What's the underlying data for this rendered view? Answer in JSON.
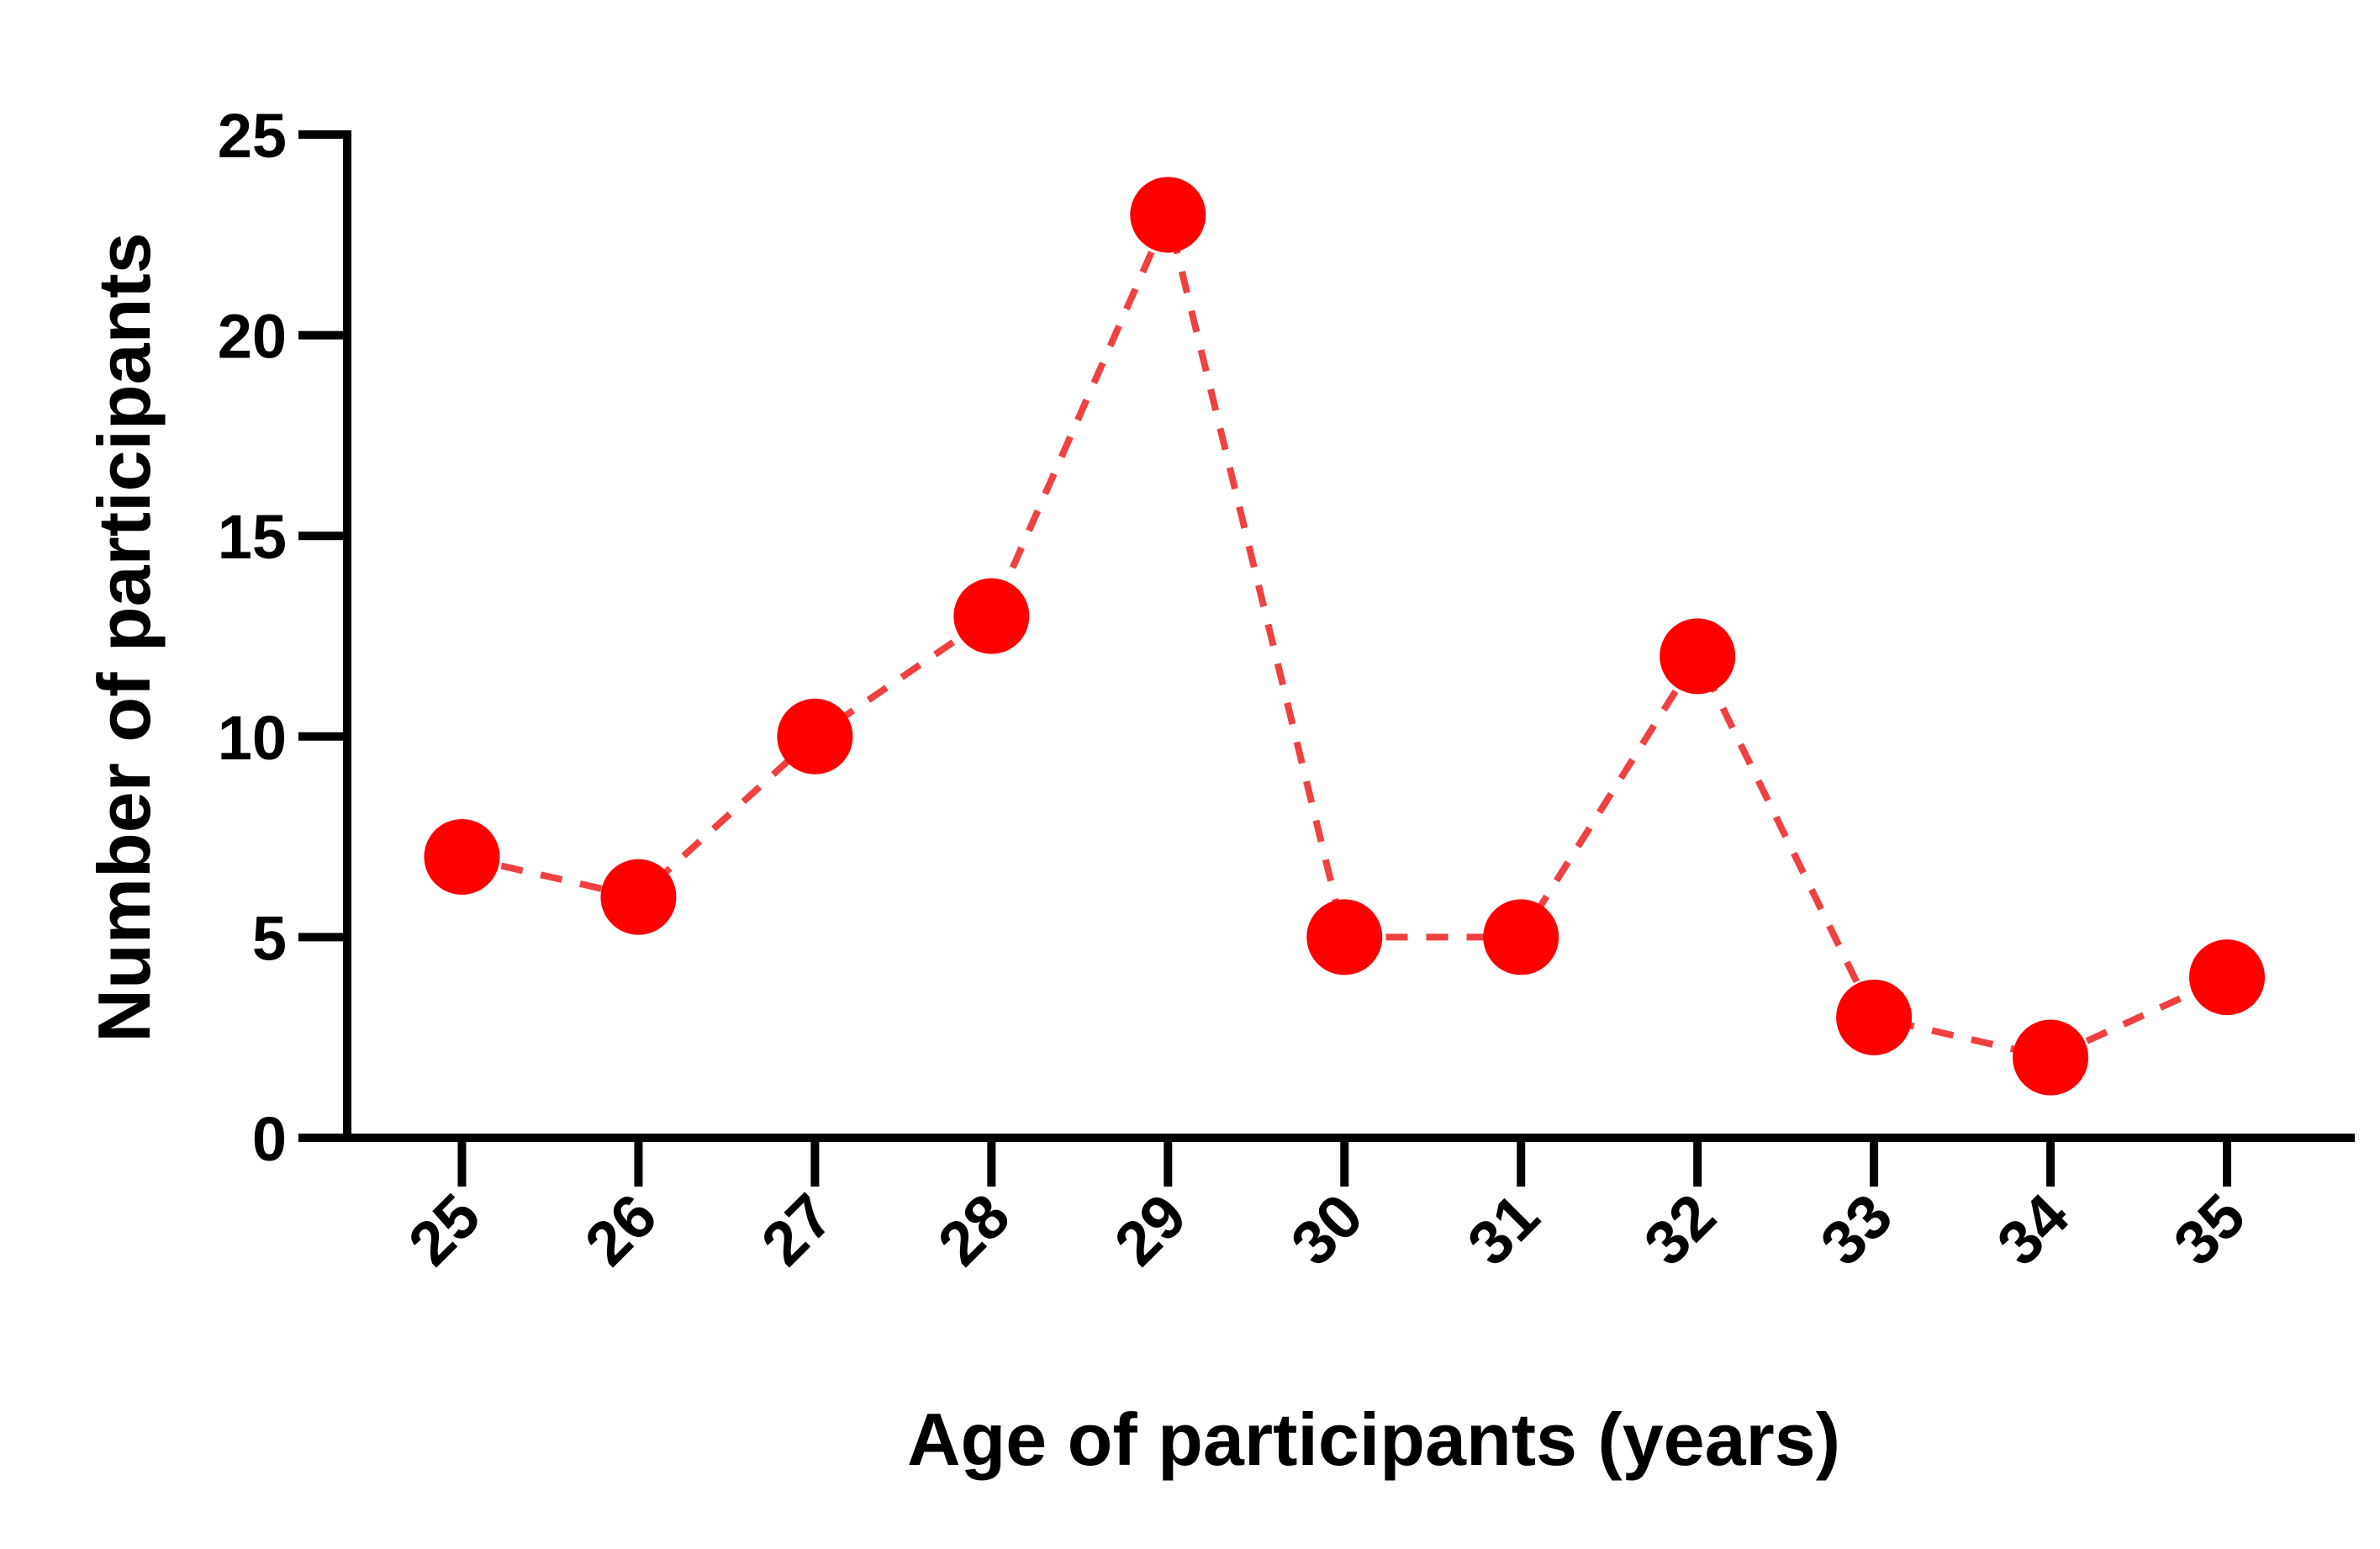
{
  "chart_data": {
    "type": "line",
    "title": "",
    "xlabel": "Age of participants (years)",
    "ylabel": "Number of participants",
    "x": [
      25,
      26,
      27,
      28,
      29,
      30,
      31,
      32,
      33,
      34,
      35
    ],
    "x_tick_labels": [
      "25",
      "26",
      "27",
      "28",
      "29",
      "30",
      "31",
      "32",
      "33",
      "34",
      "35"
    ],
    "xlim": [
      24.35,
      35.7
    ],
    "ylim": [
      0,
      25
    ],
    "y_ticks": [
      0,
      5,
      10,
      15,
      20,
      25
    ],
    "y_tick_labels": [
      "0",
      "5",
      "10",
      "15",
      "20",
      "25"
    ],
    "series": [
      {
        "values": [
          7,
          6,
          10,
          13,
          23,
          5,
          5,
          12,
          3,
          2,
          4
        ],
        "marker_color": "#ff0000",
        "line_color": "#f04040",
        "line_style": "dashed"
      }
    ],
    "grid": false,
    "legend": "none",
    "x_tick_label_rotation": "45° counter-clockwise"
  }
}
